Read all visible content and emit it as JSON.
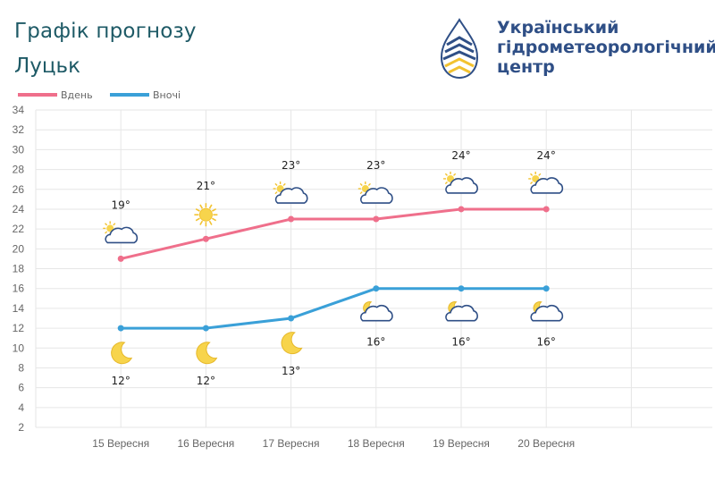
{
  "header": {
    "title": "Графік прогнозу",
    "city": "Луцьк"
  },
  "logo": {
    "line1": "Український",
    "line2": "гідрометеорологічний",
    "line3": "центр",
    "color": "#2f4f86",
    "accent": "#f2c230"
  },
  "chart_data": {
    "type": "line",
    "categories": [
      "15 Вересня",
      "16 Вересня",
      "17 Вересня",
      "18 Вересня",
      "19 Вересня",
      "20 Вересня"
    ],
    "ylim": [
      2,
      34
    ],
    "yticks": [
      2,
      4,
      6,
      8,
      10,
      12,
      14,
      16,
      18,
      20,
      22,
      24,
      26,
      28,
      30,
      32,
      34
    ],
    "grid": true,
    "legend_position": "top-left",
    "series": [
      {
        "name": "Вдень",
        "color": "#ef6f8b",
        "values": [
          19,
          21,
          23,
          23,
          24,
          24
        ],
        "labels": [
          "19°",
          "21°",
          "23°",
          "23°",
          "24°",
          "24°"
        ],
        "icons": [
          "sun-cloud-icon",
          "sun-icon",
          "sun-cloud-icon",
          "sun-cloud-icon",
          "sun-cloud-icon",
          "sun-cloud-icon"
        ]
      },
      {
        "name": "Вночі",
        "color": "#3aa0d8",
        "values": [
          12,
          12,
          13,
          16,
          16,
          16
        ],
        "labels": [
          "12°",
          "12°",
          "13°",
          "16°",
          "16°",
          "16°"
        ],
        "icons": [
          "moon-icon",
          "moon-icon",
          "moon-icon",
          "moon-cloud-icon",
          "moon-cloud-icon",
          "moon-cloud-icon"
        ]
      }
    ]
  }
}
